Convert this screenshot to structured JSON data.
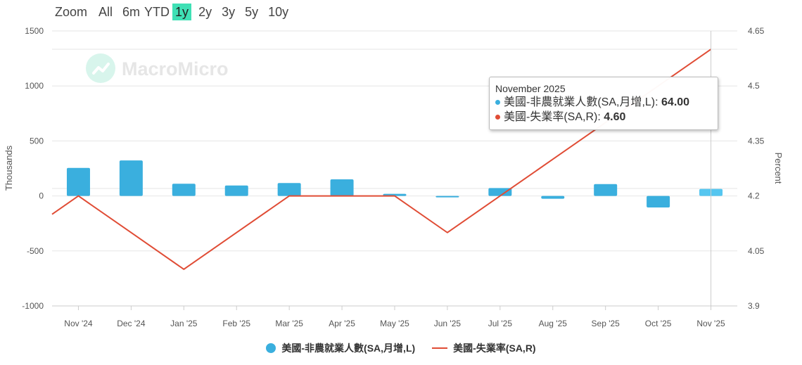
{
  "zoom": {
    "label": "Zoom",
    "options": [
      "All",
      "6m",
      "YTD",
      "1y",
      "2y",
      "3y",
      "5y",
      "10y"
    ],
    "active": "1y"
  },
  "watermark": "MacroMicro",
  "colors": {
    "bar": "#3aafde",
    "bar_highlight": "#55c6f0",
    "line": "#e04c35",
    "accent": "#3fe0b5"
  },
  "tooltip": {
    "title": "November 2025",
    "rows": [
      {
        "label": "美國-非農就業人數(SA,月增,L)",
        "value": "64.00",
        "color": "#3aafde"
      },
      {
        "label": "美國-失業率(SA,R)",
        "value": "4.60",
        "color": "#e04c35"
      }
    ]
  },
  "legend": [
    {
      "label": "美國-非農就業人數(SA,月增,L)"
    },
    {
      "label": "美國-失業率(SA,R)"
    }
  ],
  "chart_data": {
    "type": "bar",
    "categories": [
      "Nov '24",
      "Dec '24",
      "Jan '25",
      "Feb '25",
      "Mar '25",
      "Apr '25",
      "May '25",
      "Jun '25",
      "Jul '25",
      "Aug '25",
      "Sep '25",
      "Oct '25",
      "Nov '25"
    ],
    "series": [
      {
        "name": "美國-非農就業人數(SA,月增,L)",
        "type": "bar",
        "axis": "left",
        "values": [
          255,
          323,
          111,
          95,
          117,
          151,
          19,
          -13,
          72,
          -26,
          108,
          -105,
          64
        ]
      },
      {
        "name": "美國-失業率(SA,R)",
        "type": "line",
        "axis": "right",
        "values": [
          4.2,
          4.1,
          4.0,
          4.1,
          4.2,
          4.2,
          4.2,
          4.1,
          4.2,
          4.3,
          4.4,
          4.5,
          4.6
        ],
        "leading_value": 4.15
      }
    ],
    "yleft": {
      "label": "Thousands",
      "ticks": [
        "1500",
        "1000",
        "500",
        "0",
        "-500",
        "-1000"
      ],
      "range": [
        -1000,
        1500
      ]
    },
    "yright": {
      "label": "Percent",
      "ticks": [
        "4.65",
        "4.5",
        "4.35",
        "4.2",
        "4.05",
        "3.9"
      ],
      "range": [
        3.9,
        4.65
      ]
    },
    "grid": true,
    "legend_position": "bottom-center",
    "highlighted_category": "Nov '25"
  }
}
